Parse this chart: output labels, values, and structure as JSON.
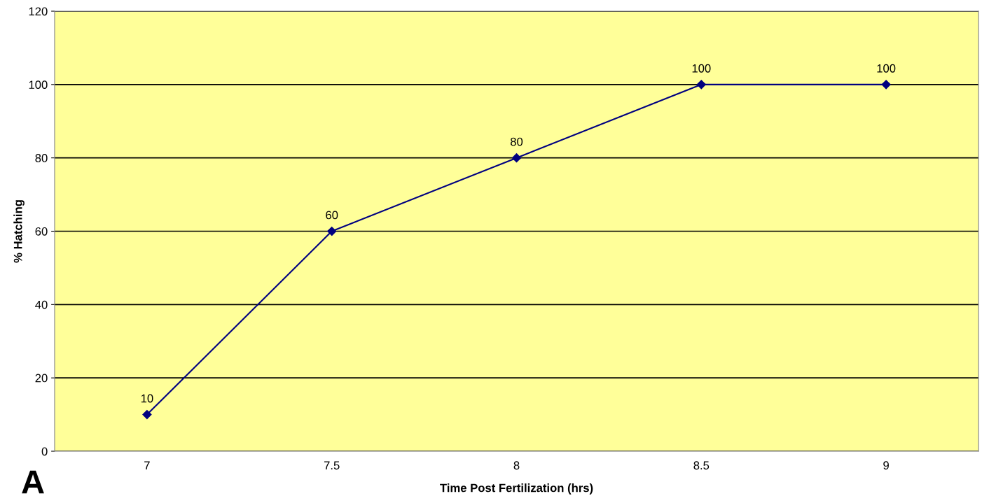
{
  "chart_data": {
    "type": "line",
    "xlabel": "Time Post Fertilization (hrs)",
    "ylabel": "% Hatching",
    "categories": [
      "7",
      "7.5",
      "8",
      "8.5",
      "9"
    ],
    "series": [
      {
        "color": "#000080",
        "values": [
          10,
          60,
          80,
          100,
          100
        ]
      }
    ],
    "ylim": [
      0,
      120
    ],
    "yticks": [
      0,
      20,
      40,
      60,
      80,
      100,
      120
    ],
    "grid": "y",
    "marker": "diamond",
    "line_style": "solid",
    "data_labels": true,
    "annotations": [
      "A"
    ]
  }
}
